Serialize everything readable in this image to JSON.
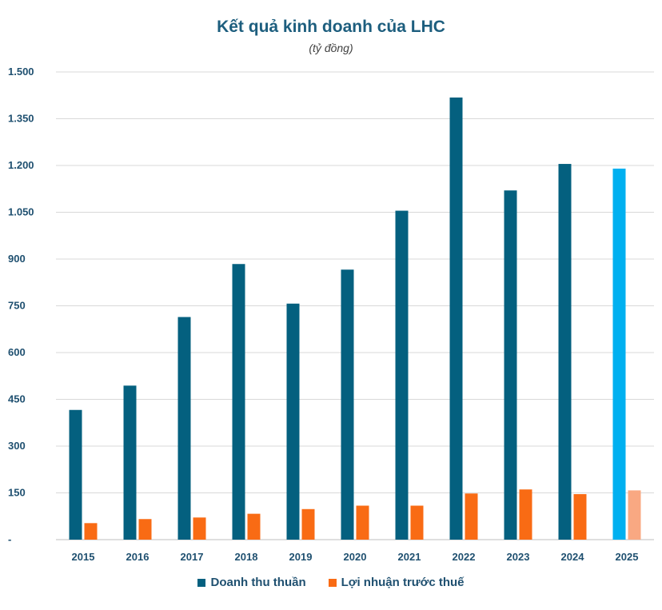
{
  "chart_data": {
    "type": "bar",
    "title": "Kết quả kinh doanh của LHC",
    "subtitle": "(tỷ đồng)",
    "categories": [
      "2015",
      "2016",
      "2017",
      "2018",
      "2019",
      "2020",
      "2021",
      "2022",
      "2023",
      "2024",
      "2025"
    ],
    "series": [
      {
        "name": "Doanh thu thuần",
        "color": "#04607f",
        "highlight_color": "#00b0f0",
        "values": [
          416,
          494,
          714,
          884,
          757,
          866,
          1055,
          1418,
          1120,
          1205,
          1190
        ]
      },
      {
        "name": "Lợi nhuận trước thuế",
        "color": "#f96b14",
        "highlight_color": "#f9a882",
        "values": [
          53,
          66,
          71,
          83,
          98,
          109,
          109,
          148,
          161,
          146,
          158
        ]
      }
    ],
    "highlight_category": "2025",
    "ylim": [
      0,
      1500
    ],
    "yticks": [
      0,
      150,
      300,
      450,
      600,
      750,
      900,
      1050,
      1200,
      1350,
      1500
    ],
    "ytick_labels": [
      "-",
      "150",
      "300",
      "450",
      "600",
      "750",
      "900",
      "1.050",
      "1.200",
      "1.350",
      "1.500"
    ],
    "grid": true,
    "legend_position": "bottom"
  }
}
